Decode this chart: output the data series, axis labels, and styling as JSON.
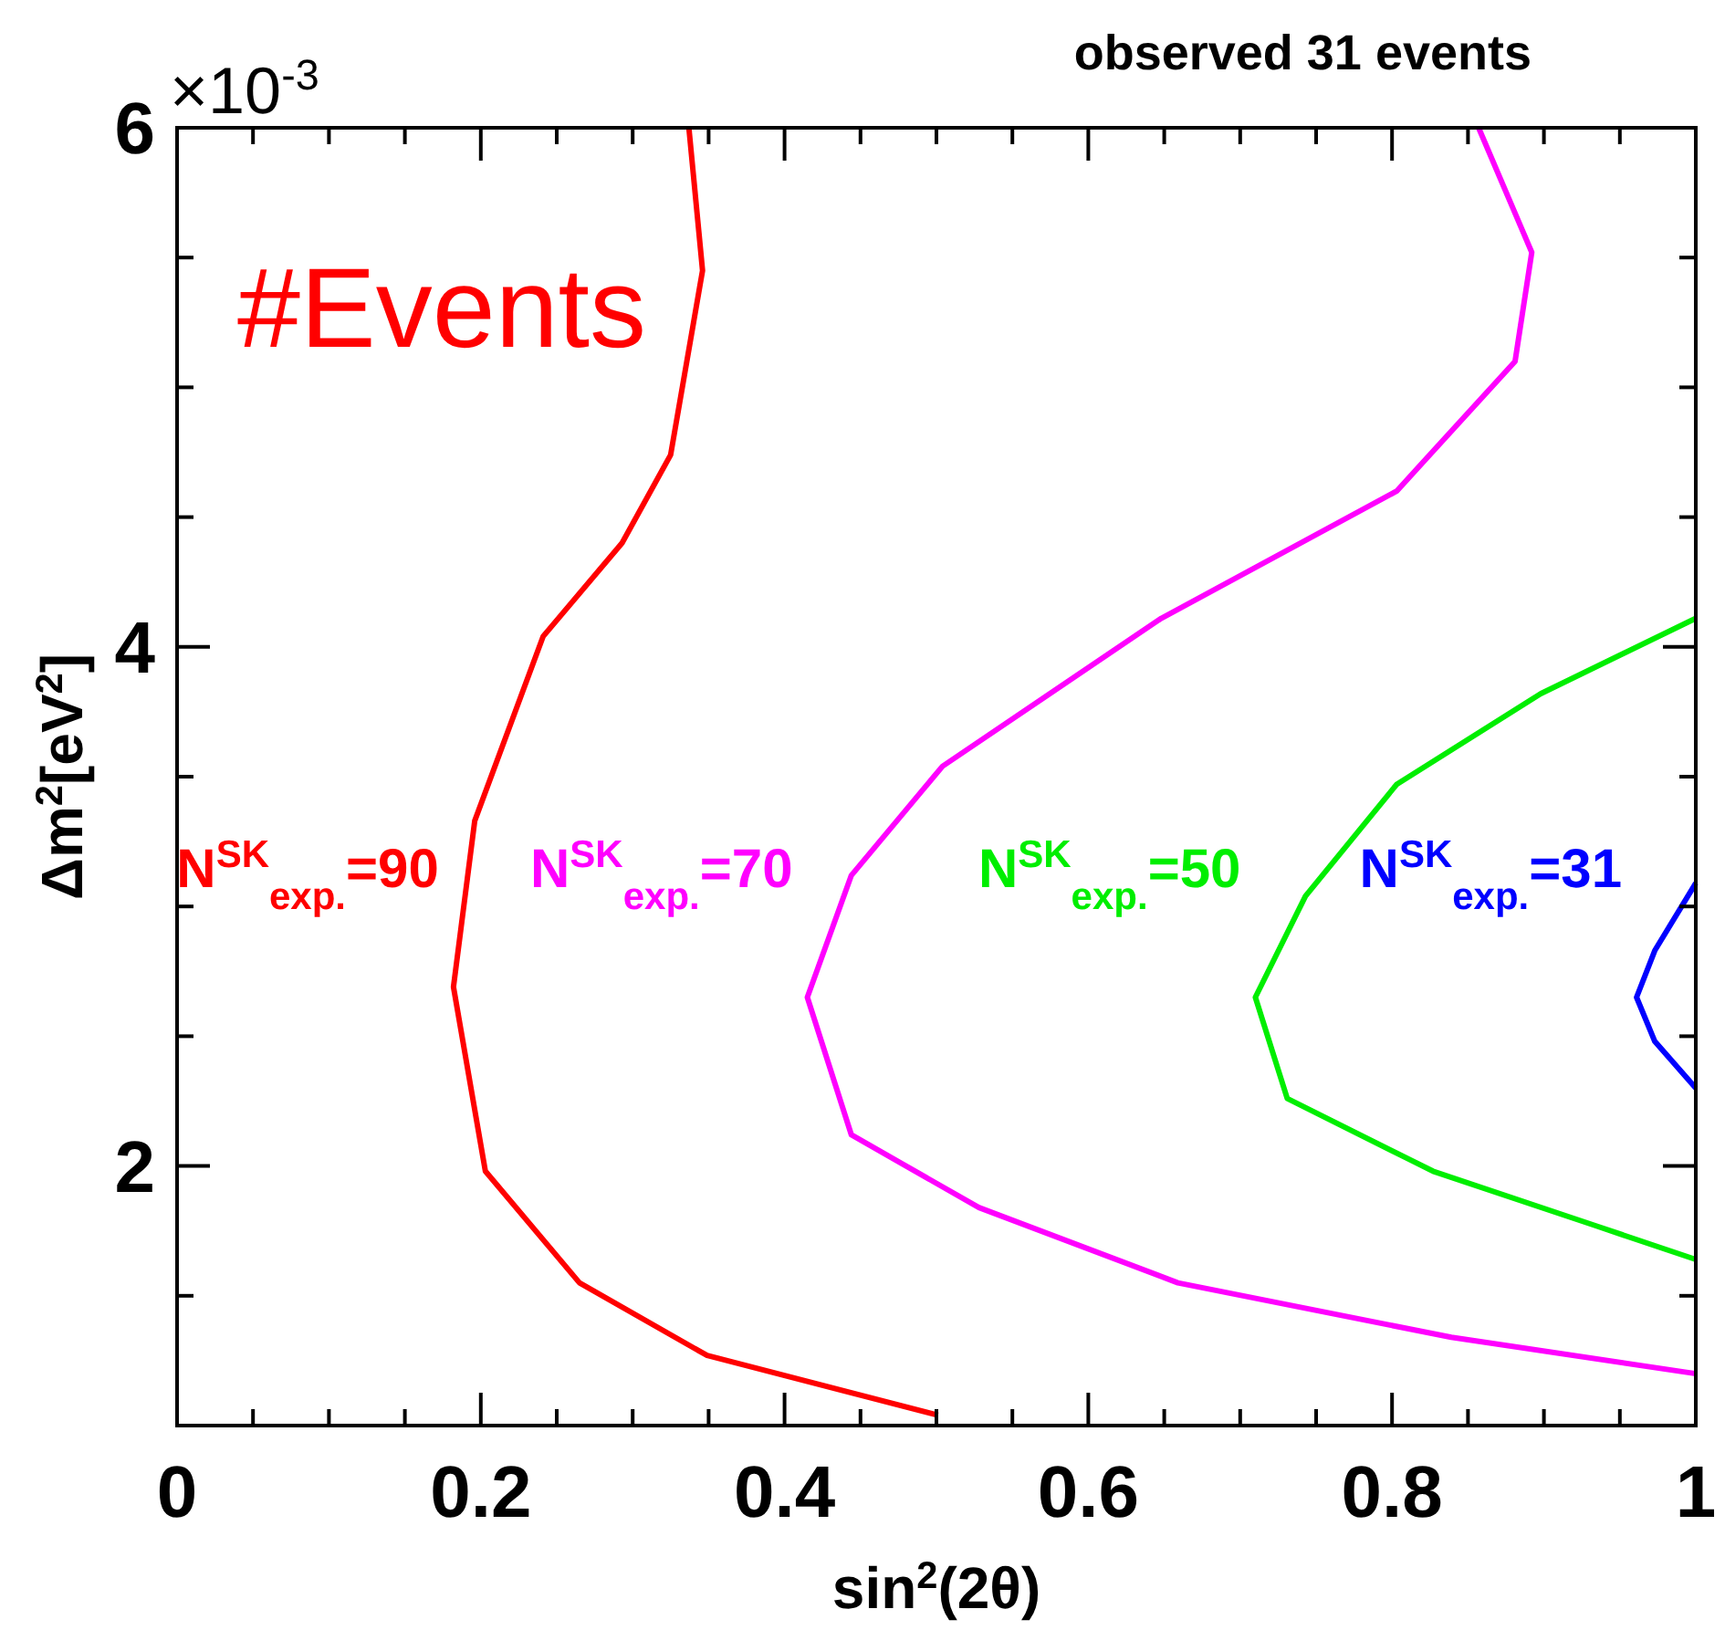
{
  "chart_data": {
    "type": "line",
    "title": "observed 31 events",
    "xlabel": "sin$^{2}$(2θ)",
    "ylabel": "Δm$^{2}$[eV$^{2}$]",
    "annotations": [
      "#Events",
      "×10$^{-3}$"
    ],
    "xlim": [
      0,
      1
    ],
    "ylim": [
      1,
      6
    ],
    "xticks": [
      0,
      {
        "value": 0.05,
        "label": null
      },
      {
        "value": 0.1,
        "label": null
      },
      {
        "value": 0.15,
        "label": null
      },
      0.2,
      {
        "value": 0.25,
        "label": null
      },
      {
        "value": 0.3,
        "label": null
      },
      {
        "value": 0.35,
        "label": null
      },
      0.4,
      {
        "value": 0.45,
        "label": null
      },
      {
        "value": 0.5,
        "label": null
      },
      {
        "value": 0.55,
        "label": null
      },
      0.6,
      {
        "value": 0.65,
        "label": null
      },
      {
        "value": 0.7,
        "label": null
      },
      {
        "value": 0.75,
        "label": null
      },
      0.8,
      {
        "value": 0.85,
        "label": null
      },
      {
        "value": 0.9,
        "label": null
      },
      {
        "value": 0.95,
        "label": null
      },
      1
    ],
    "yticks": [
      {
        "value": 1.5,
        "label": null
      },
      2,
      {
        "value": 2.5,
        "label": null
      },
      {
        "value": 3,
        "label": null
      },
      {
        "value": 3.5,
        "label": null
      },
      4,
      {
        "value": 4.5,
        "label": null
      },
      {
        "value": 5,
        "label": null
      },
      {
        "value": 5.5,
        "label": null
      },
      6
    ],
    "grid": false,
    "line_style": "solid",
    "series": [
      {
        "name": "N$^{SK}$$_{exp.}$=90",
        "color": "#ff0000",
        "x": [
          0.337,
          0.346,
          0.325,
          0.293,
          0.241,
          0.196,
          0.182,
          0.203,
          0.265,
          0.349,
          0.501
        ],
        "values": [
          6.0,
          5.45,
          4.74,
          4.4,
          4.04,
          3.33,
          2.69,
          1.98,
          1.55,
          1.27,
          1.04
        ]
      },
      {
        "name": "N$^{SK}$$_{exp.}$=70",
        "color": "#ff00ff",
        "x": [
          0.857,
          0.892,
          0.881,
          0.803,
          0.648,
          0.504,
          0.444,
          0.415,
          0.444,
          0.528,
          0.659,
          0.839,
          1.0
        ],
        "values": [
          6.0,
          5.52,
          5.1,
          4.6,
          4.11,
          3.54,
          3.12,
          2.65,
          2.12,
          1.84,
          1.55,
          1.34,
          1.2
        ]
      },
      {
        "name": "N$^{SK}$$_{exp.}$=50",
        "color": "#00ee00",
        "x": [
          1.0,
          0.898,
          0.803,
          0.743,
          0.71,
          0.731,
          0.827,
          0.934,
          1.0
        ],
        "values": [
          4.11,
          3.82,
          3.47,
          3.04,
          2.65,
          2.26,
          1.98,
          1.77,
          1.64
        ]
      },
      {
        "name": "N$^{SK}$$_{exp.}$=31",
        "color": "#0000ff",
        "x": [
          1.0,
          0.973,
          0.961,
          0.973,
          1.0
        ],
        "values": [
          3.09,
          2.83,
          2.65,
          2.48,
          2.3
        ]
      }
    ]
  }
}
